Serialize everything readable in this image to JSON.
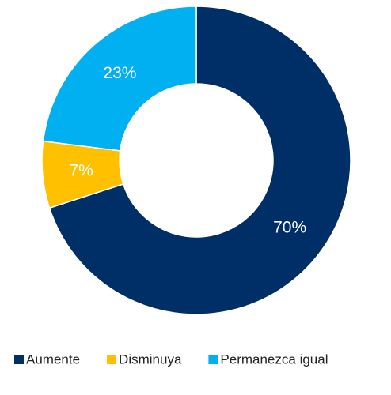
{
  "chart_data": {
    "type": "donut",
    "categories": [
      "Aumente",
      "Disminuya",
      "Permanezca igual"
    ],
    "values": [
      70,
      7,
      23
    ],
    "value_labels": [
      "70%",
      "7%",
      "23%"
    ],
    "colors": [
      "#002f67",
      "#ffc000",
      "#00b0f0"
    ],
    "legend": "bottom"
  }
}
